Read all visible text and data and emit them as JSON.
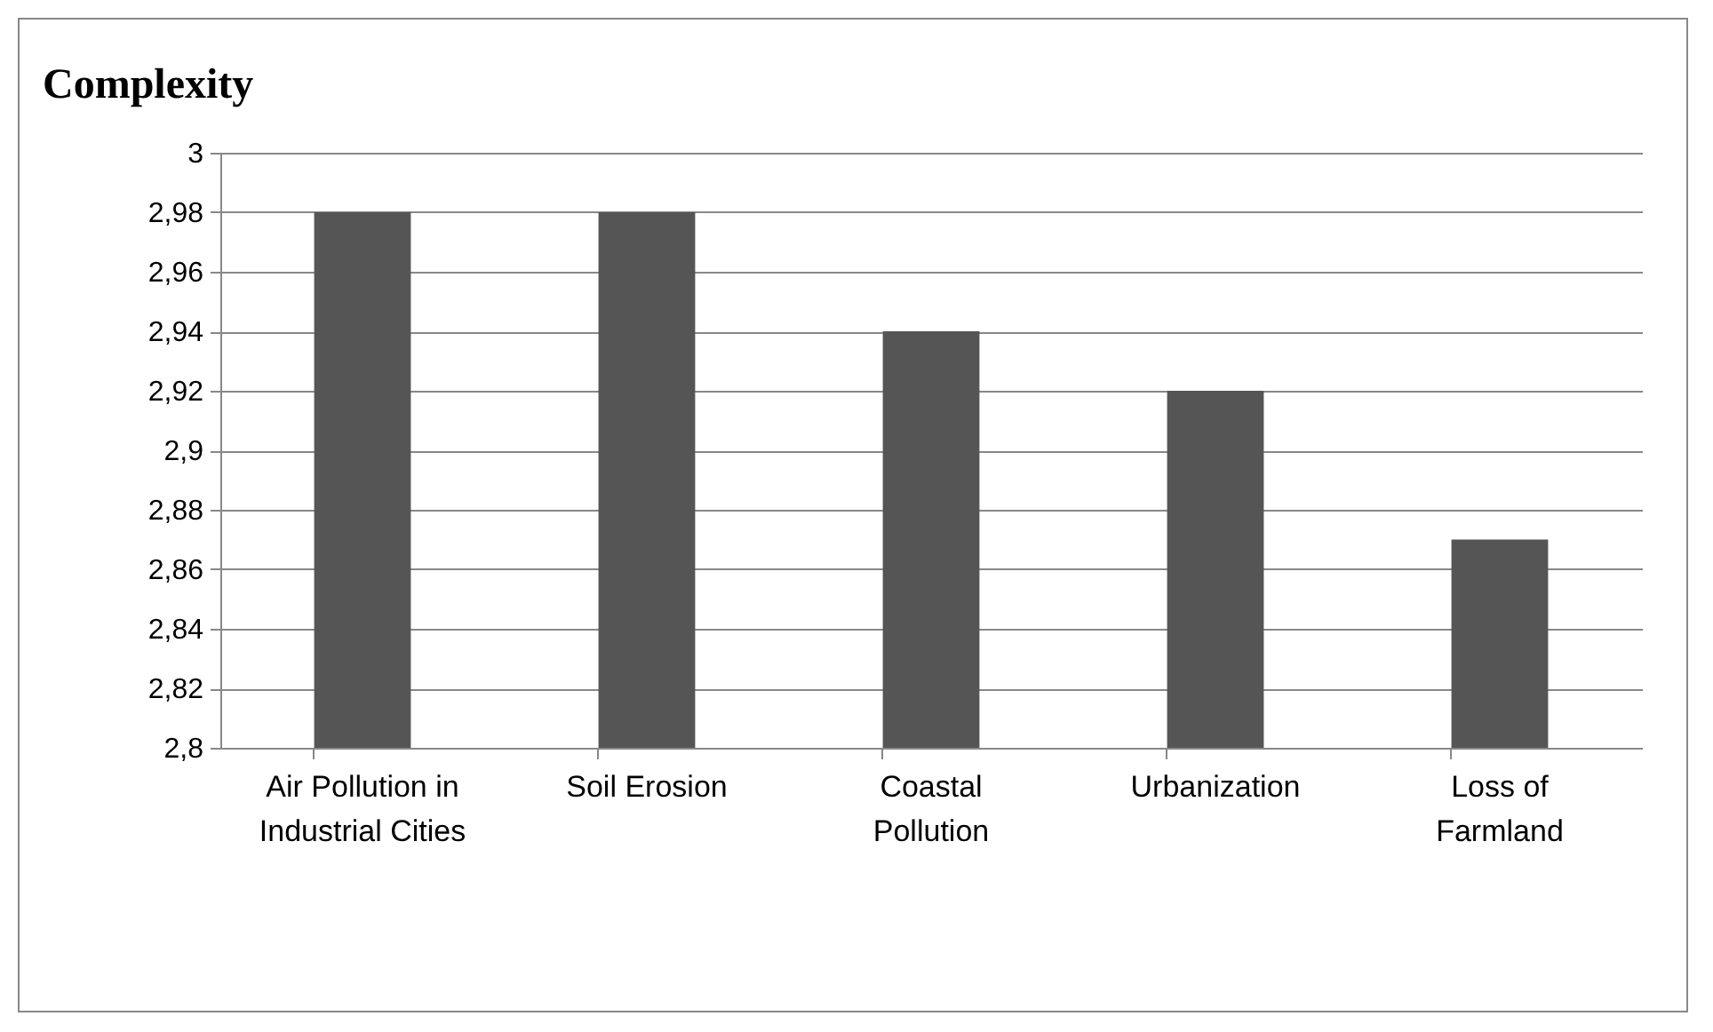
{
  "chart_data": {
    "type": "bar",
    "title": "Complexity",
    "categories": [
      "Air Pollution in Industrial Cities",
      "Soil Erosion",
      "Coastal Pollution",
      "Urbanization",
      "Loss of Farmland"
    ],
    "values": [
      2.98,
      2.98,
      2.94,
      2.92,
      2.87
    ],
    "color": "#555555",
    "ylim": [
      2.8,
      3
    ],
    "yticks": [
      {
        "value": 2.8,
        "label": "2,8"
      },
      {
        "value": 2.82,
        "label": "2,82"
      },
      {
        "value": 2.84,
        "label": "2,84"
      },
      {
        "value": 2.86,
        "label": "2,86"
      },
      {
        "value": 2.88,
        "label": "2,88"
      },
      {
        "value": 2.9,
        "label": "2,9"
      },
      {
        "value": 2.92,
        "label": "2,92"
      },
      {
        "value": 2.94,
        "label": "2,94"
      },
      {
        "value": 2.96,
        "label": "2,96"
      },
      {
        "value": 2.98,
        "label": "2,98"
      },
      3
    ],
    "grid": "y"
  }
}
